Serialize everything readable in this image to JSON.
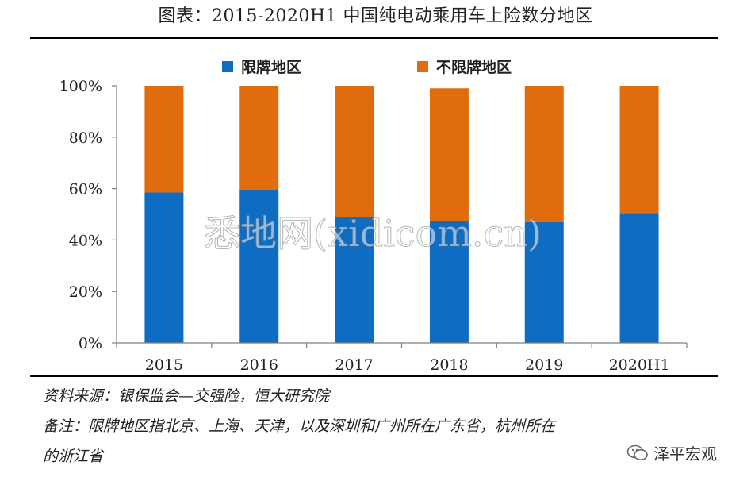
{
  "title": "图表：2015-2020H1 中国纯电动乘用车上险数分地区",
  "source": "资料来源：银保监会—交强险，恒大研究院",
  "note_line1": "备注：限牌地区指北京、上海、天津，以及深圳和广州所在广东省，杭州所在",
  "note_line2": "的浙江省",
  "brand": "泽平宏观",
  "watermark": "悉地网(xidicom.cn)",
  "colors": {
    "restricted": "#0e6cc2",
    "unrestricted": "#e06c0e",
    "axis": "#7f7f7f"
  },
  "chart_data": {
    "type": "bar",
    "stacked": true,
    "categories": [
      "2015",
      "2016",
      "2017",
      "2018",
      "2019",
      "2020H1"
    ],
    "series": [
      {
        "name": "限牌地区",
        "values": [
          58.5,
          59.5,
          49,
          47.5,
          47,
          50.5
        ]
      },
      {
        "name": "不限牌地区",
        "values": [
          41.5,
          40.5,
          51,
          51.5,
          53,
          49.5
        ]
      }
    ],
    "yticks": [
      "0%",
      "20%",
      "40%",
      "60%",
      "80%",
      "100%"
    ],
    "ylim": [
      0,
      100
    ],
    "legend": "top",
    "grid": false
  }
}
